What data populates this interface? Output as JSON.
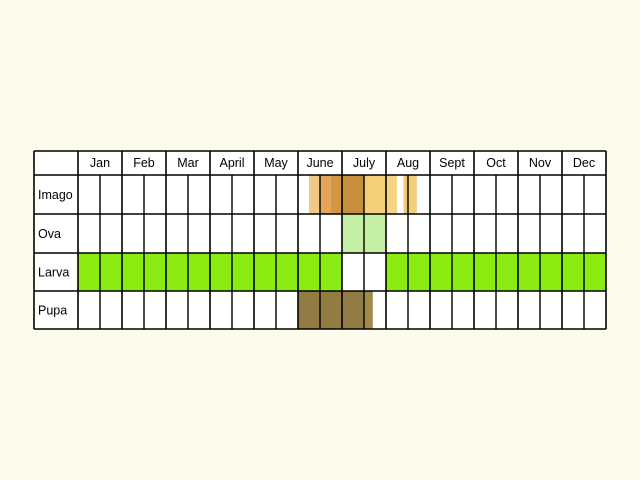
{
  "chart_data": {
    "type": "table",
    "months": [
      "Jan",
      "Feb",
      "Mar",
      "April",
      "May",
      "June",
      "July",
      "Aug",
      "Sept",
      "Oct",
      "Nov",
      "Dec"
    ],
    "stages": [
      {
        "key": "imago",
        "label": "Imago",
        "segments": [
          {
            "start": 6.25,
            "end": 6.5,
            "color": "#f0c887"
          },
          {
            "start": 6.5,
            "end": 6.75,
            "color": "#e3a65a"
          },
          {
            "start": 6.75,
            "end": 7.0,
            "color": "#d19844"
          },
          {
            "start": 7.0,
            "end": 7.5,
            "color": "#c68e3d"
          },
          {
            "start": 7.5,
            "end": 8.0,
            "color": "#f3cf7a"
          },
          {
            "start": 8.0,
            "end": 8.25,
            "color": "#f5d485"
          },
          {
            "start": 8.4,
            "end": 8.5,
            "color": "#f2c679"
          },
          {
            "start": 8.5,
            "end": 8.7,
            "color": "#f3cf7a"
          }
        ]
      },
      {
        "key": "ova",
        "label": "Ova",
        "segments": [
          {
            "start": 7.0,
            "end": 8.0,
            "color": "#c6efa6"
          }
        ]
      },
      {
        "key": "larva",
        "label": "Larva",
        "segments": [
          {
            "start": 1.0,
            "end": 7.0,
            "color": "#8cec11"
          },
          {
            "start": 8.0,
            "end": 13.0,
            "color": "#8cec11"
          }
        ]
      },
      {
        "key": "pupa",
        "label": "Pupa",
        "segments": [
          {
            "start": 6.0,
            "end": 7.5,
            "color": "#937c43"
          },
          {
            "start": 7.5,
            "end": 7.7,
            "color": "#9f8a4c"
          }
        ]
      }
    ],
    "colors": {
      "background": "#fdfbeb",
      "cell": "#ffffff",
      "grid": "#000000"
    }
  }
}
